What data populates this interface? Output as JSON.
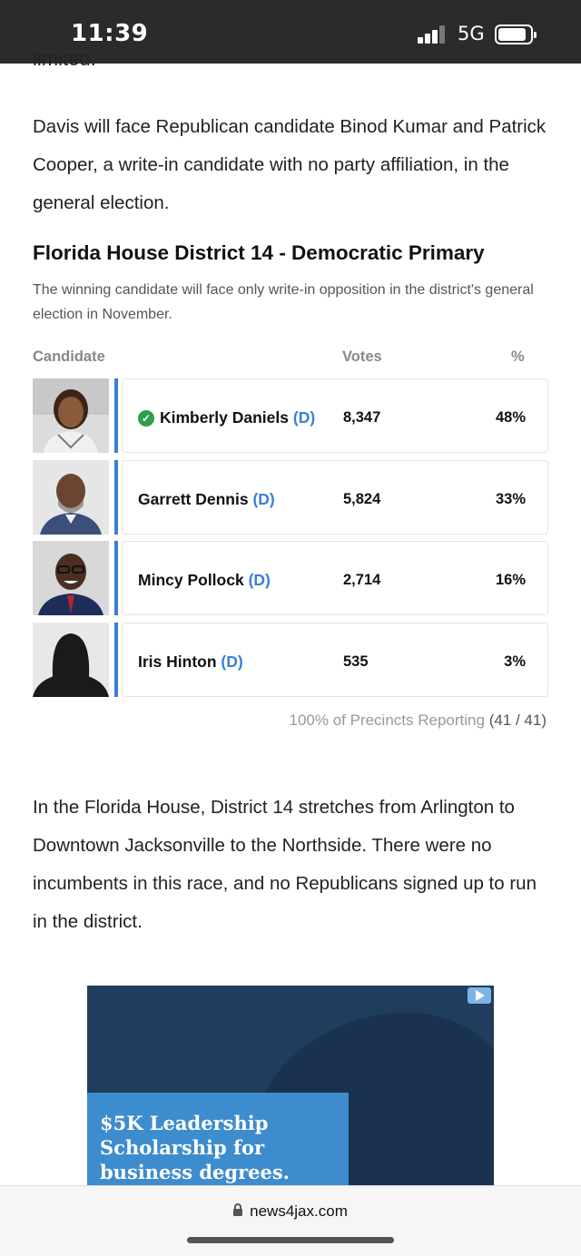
{
  "status_bar": {
    "time": "11:39",
    "network": "5G"
  },
  "article": {
    "cut_off_text": "limited.",
    "paragraph_1": "Davis will face Republican candidate Binod Kumar and Patrick Cooper, a write-in candidate with no party affiliation, in the general election.",
    "paragraph_2": "In the Florida House, District 14 stretches from Arlington to Downtown Jacksonville to the Northside. There were no incumbents in this race, and no Republicans signed up to run in the district."
  },
  "results": {
    "title": "Florida House District 14 - Democratic Primary",
    "subtitle": "The winning candidate will face only write-in opposition in the district's general election in November.",
    "headers": {
      "candidate": "Candidate",
      "votes": "Votes",
      "percent": "%"
    },
    "candidates": [
      {
        "name": "Kimberly Daniels",
        "party": "(D)",
        "votes": "8,347",
        "percent": "48%",
        "winner": true
      },
      {
        "name": "Garrett Dennis",
        "party": "(D)",
        "votes": "5,824",
        "percent": "33%",
        "winner": false
      },
      {
        "name": "Mincy Pollock",
        "party": "(D)",
        "votes": "2,714",
        "percent": "16%",
        "winner": false
      },
      {
        "name": "Iris Hinton",
        "party": "(D)",
        "votes": "535",
        "percent": "3%",
        "winner": false
      }
    ],
    "precincts_label": "100% of Precincts Reporting",
    "precincts_count": "(41 / 41)"
  },
  "ad": {
    "text": "$5K Leadership\nScholarship for\nbusiness degrees."
  },
  "browser": {
    "url": "news4jax.com"
  },
  "colors": {
    "party_blue": "#3a7fd5",
    "winner_green": "#2e9e48",
    "status_bar": "#2b2b2b"
  }
}
